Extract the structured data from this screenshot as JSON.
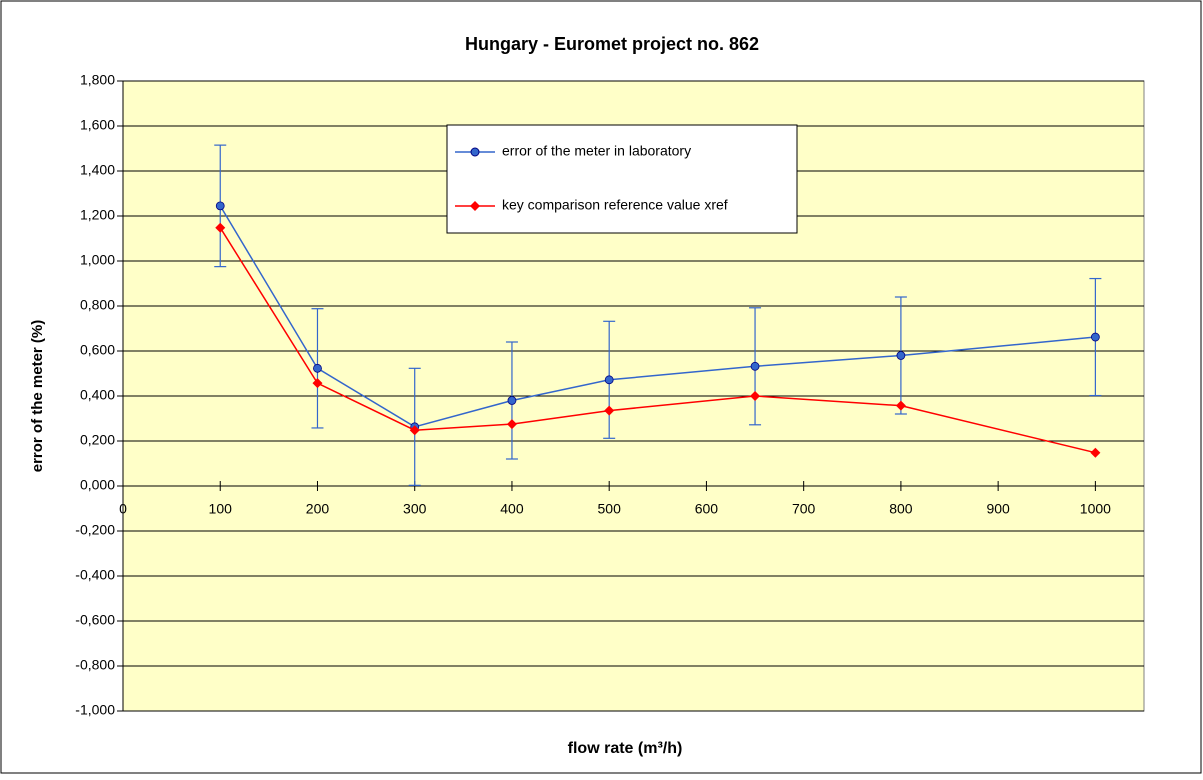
{
  "chart_data": {
    "type": "line",
    "title": "Hungary -  Euromet project no. 862",
    "xlabel": "flow rate (m³/h)",
    "ylabel": "error of the meter (%)",
    "x": [
      100,
      200,
      300,
      400,
      500,
      650,
      800,
      1000
    ],
    "series": [
      {
        "name": "error of the meter in laboratory",
        "color": "#3366cc",
        "marker": "circle",
        "values": [
          1.245,
          0.523,
          0.263,
          0.38,
          0.472,
          0.532,
          0.58,
          0.662
        ],
        "errors": [
          0.27,
          0.265,
          0.26,
          0.26,
          0.26,
          0.26,
          0.26,
          0.26
        ]
      },
      {
        "name": "key comparison reference value xref",
        "color": "#ff0000",
        "marker": "diamond",
        "values": [
          1.148,
          0.457,
          0.248,
          0.275,
          0.335,
          0.4,
          0.357,
          0.148
        ]
      }
    ],
    "xlim": [
      0,
      1050
    ],
    "xticks": [
      0,
      100,
      200,
      300,
      400,
      500,
      600,
      700,
      800,
      900,
      1000
    ],
    "ylim": [
      -1,
      1.8
    ],
    "yticks": [
      {
        "value": -1,
        "label": "-1,000"
      },
      {
        "value": -0.8,
        "label": "-0,800"
      },
      {
        "value": -0.6,
        "label": "-0,600"
      },
      {
        "value": -0.4,
        "label": "-0,400"
      },
      {
        "value": -0.2,
        "label": "-0,200"
      },
      {
        "value": 0,
        "label": "0,000"
      },
      {
        "value": 0.2,
        "label": "0,200"
      },
      {
        "value": 0.4,
        "label": "0,400"
      },
      {
        "value": 0.6,
        "label": "0,600"
      },
      {
        "value": 0.8,
        "label": "0,800"
      },
      {
        "value": 1,
        "label": "1,000"
      },
      {
        "value": 1.2,
        "label": "1,200"
      },
      {
        "value": 1.4,
        "label": "1,400"
      },
      {
        "value": 1.6,
        "label": "1,600"
      },
      {
        "value": 1.8,
        "label": "1,800"
      }
    ],
    "grid": true,
    "legend": "top"
  }
}
